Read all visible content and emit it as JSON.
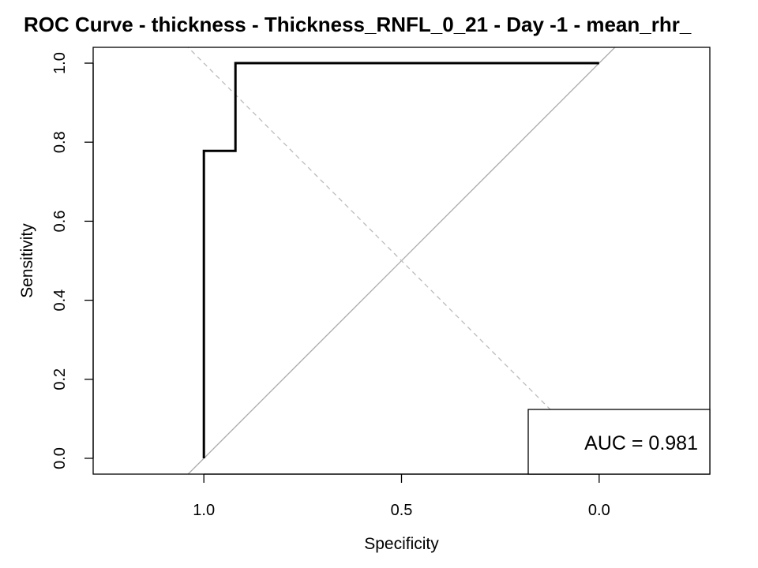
{
  "chart_data": {
    "type": "line",
    "title": "ROC Curve - thickness - Thickness_RNFL_0_21 - Day -1 - mean_rhr_",
    "xlabel": "Specificity",
    "ylabel": "Sensitivity",
    "xlim": [
      1.28,
      -0.28
    ],
    "ylim": [
      -0.04,
      1.04
    ],
    "x_reversed": true,
    "x_ticks": [
      1.0,
      0.5,
      0.0
    ],
    "x_tick_labels": [
      "1.0",
      "0.5",
      "0.0"
    ],
    "y_ticks": [
      0.0,
      0.2,
      0.4,
      0.6,
      0.8,
      1.0
    ],
    "y_tick_labels": [
      "0.0",
      "0.2",
      "0.4",
      "0.6",
      "0.8",
      "1.0"
    ],
    "grid": false,
    "series": [
      {
        "color": "#000000",
        "specificity": [
          1.0,
          1.0,
          0.92,
          0.92,
          0.0
        ],
        "sensitivity": [
          0.0,
          0.778,
          0.778,
          1.0,
          1.0
        ]
      }
    ],
    "reference_lines": [
      {
        "kind": "diagonal",
        "style": "solid",
        "color": "#aaaaaa"
      },
      {
        "kind": "youden",
        "style": "dashed",
        "color": "#bbbbbb"
      }
    ],
    "legend": {
      "position": "bottom-right",
      "text": "AUC = 0.981"
    }
  }
}
